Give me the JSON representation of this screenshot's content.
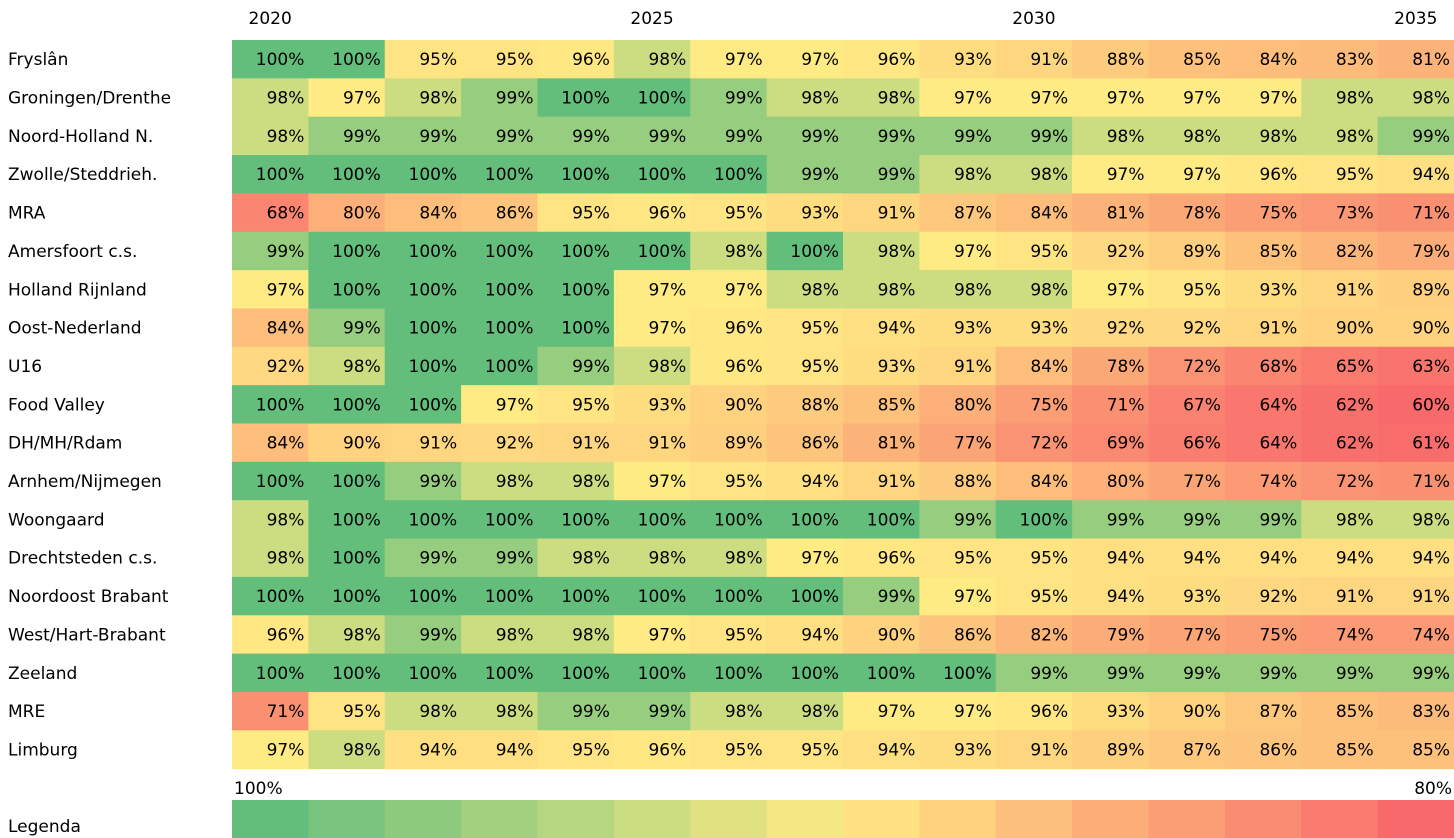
{
  "chart_data": {
    "type": "heatmap",
    "categories": [
      "2020",
      null,
      null,
      null,
      null,
      "2025",
      null,
      null,
      null,
      null,
      "2030",
      null,
      null,
      null,
      null,
      "2035"
    ],
    "colors": {
      "high": "#63be7b",
      "mid": "#ffeb84",
      "low": "#f8696b"
    },
    "legend": {
      "title": "Legenda",
      "labels": [
        "100%",
        "80%"
      ]
    },
    "series": [
      {
        "name": "Fryslân",
        "values": [
          100,
          100,
          95,
          95,
          96,
          98,
          97,
          97,
          96,
          93,
          91,
          88,
          85,
          84,
          83,
          81
        ],
        "value_labels": [
          "100%",
          "100%",
          "95%",
          "95%",
          "96%",
          "98%",
          "97%",
          "97%",
          "96%",
          "93%",
          "91%",
          "88%",
          "85%",
          "84%",
          "83%",
          "81%"
        ]
      },
      {
        "name": "Groningen/Drenthe",
        "values": [
          98,
          97,
          98,
          99,
          100,
          100,
          99,
          98,
          98,
          97,
          97,
          97,
          97,
          97,
          98,
          98
        ],
        "value_labels": [
          "98%",
          "97%",
          "98%",
          "99%",
          "100%",
          "100%",
          "99%",
          "98%",
          "98%",
          "97%",
          "97%",
          "97%",
          "97%",
          "97%",
          "98%",
          "98%"
        ]
      },
      {
        "name": "Noord-Holland N.",
        "values": [
          98,
          99,
          99,
          99,
          99,
          99,
          99,
          99,
          99,
          99,
          99,
          98,
          98,
          98,
          98,
          99
        ],
        "value_labels": [
          "98%",
          "99%",
          "99%",
          "99%",
          "99%",
          "99%",
          "99%",
          "99%",
          "99%",
          "99%",
          "99%",
          "98%",
          "98%",
          "98%",
          "98%",
          "99%"
        ]
      },
      {
        "name": "Zwolle/Steddrieh.",
        "values": [
          100,
          100,
          100,
          100,
          100,
          100,
          100,
          99,
          99,
          98,
          98,
          97,
          97,
          96,
          95,
          94
        ],
        "value_labels": [
          "100%",
          "100%",
          "100%",
          "100%",
          "100%",
          "100%",
          "100%",
          "99%",
          "99%",
          "98%",
          "98%",
          "97%",
          "97%",
          "96%",
          "95%",
          "94%"
        ]
      },
      {
        "name": "MRA",
        "values": [
          68,
          80,
          84,
          86,
          95,
          96,
          95,
          93,
          91,
          87,
          84,
          81,
          78,
          75,
          73,
          71
        ],
        "value_labels": [
          "68%",
          "80%",
          "84%",
          "86%",
          "95%",
          "96%",
          "95%",
          "93%",
          "91%",
          "87%",
          "84%",
          "81%",
          "78%",
          "75%",
          "73%",
          "71%"
        ]
      },
      {
        "name": "Amersfoort c.s.",
        "values": [
          99,
          100,
          100,
          100,
          100,
          100,
          98,
          100,
          98,
          97,
          95,
          92,
          89,
          85,
          82,
          79
        ],
        "value_labels": [
          "99%",
          "100%",
          "100%",
          "100%",
          "100%",
          "100%",
          "98%",
          "100%",
          "98%",
          "97%",
          "95%",
          "92%",
          "89%",
          "85%",
          "82%",
          "79%"
        ]
      },
      {
        "name": "Holland Rijnland",
        "values": [
          97,
          100,
          100,
          100,
          100,
          97,
          97,
          98,
          98,
          98,
          98,
          97,
          95,
          93,
          91,
          89
        ],
        "value_labels": [
          "97%",
          "100%",
          "100%",
          "100%",
          "100%",
          "97%",
          "97%",
          "98%",
          "98%",
          "98%",
          "98%",
          "97%",
          "95%",
          "93%",
          "91%",
          "89%"
        ]
      },
      {
        "name": "Oost-Nederland",
        "values": [
          84,
          99,
          100,
          100,
          100,
          97,
          96,
          95,
          94,
          93,
          93,
          92,
          92,
          91,
          90,
          90
        ],
        "value_labels": [
          "84%",
          "99%",
          "100%",
          "100%",
          "100%",
          "97%",
          "96%",
          "95%",
          "94%",
          "93%",
          "93%",
          "92%",
          "92%",
          "91%",
          "90%",
          "90%"
        ]
      },
      {
        "name": "U16",
        "values": [
          92,
          98,
          100,
          100,
          99,
          98,
          96,
          95,
          93,
          91,
          84,
          78,
          72,
          68,
          65,
          63
        ],
        "value_labels": [
          "92%",
          "98%",
          "100%",
          "100%",
          "99%",
          "98%",
          "96%",
          "95%",
          "93%",
          "91%",
          "84%",
          "78%",
          "72%",
          "68%",
          "65%",
          "63%"
        ]
      },
      {
        "name": "Food Valley",
        "values": [
          100,
          100,
          100,
          97,
          95,
          93,
          90,
          88,
          85,
          80,
          75,
          71,
          67,
          64,
          62,
          60
        ],
        "value_labels": [
          "100%",
          "100%",
          "100%",
          "97%",
          "95%",
          "93%",
          "90%",
          "88%",
          "85%",
          "80%",
          "75%",
          "71%",
          "67%",
          "64%",
          "62%",
          "60%"
        ]
      },
      {
        "name": "DH/MH/Rdam",
        "values": [
          84,
          90,
          91,
          92,
          91,
          91,
          89,
          86,
          81,
          77,
          72,
          69,
          66,
          64,
          62,
          61
        ],
        "value_labels": [
          "84%",
          "90%",
          "91%",
          "92%",
          "91%",
          "91%",
          "89%",
          "86%",
          "81%",
          "77%",
          "72%",
          "69%",
          "66%",
          "64%",
          "62%",
          "61%"
        ]
      },
      {
        "name": "Arnhem/Nijmegen",
        "values": [
          100,
          100,
          99,
          98,
          98,
          97,
          95,
          94,
          91,
          88,
          84,
          80,
          77,
          74,
          72,
          71
        ],
        "value_labels": [
          "100%",
          "100%",
          "99%",
          "98%",
          "98%",
          "97%",
          "95%",
          "94%",
          "91%",
          "88%",
          "84%",
          "80%",
          "77%",
          "74%",
          "72%",
          "71%"
        ]
      },
      {
        "name": "Woongaard",
        "values": [
          98,
          100,
          100,
          100,
          100,
          100,
          100,
          100,
          100,
          99,
          100,
          99,
          99,
          99,
          98,
          98
        ],
        "value_labels": [
          "98%",
          "100%",
          "100%",
          "100%",
          "100%",
          "100%",
          "100%",
          "100%",
          "100%",
          "99%",
          "100%",
          "99%",
          "99%",
          "99%",
          "98%",
          "98%"
        ]
      },
      {
        "name": "Drechtsteden c.s.",
        "values": [
          98,
          100,
          99,
          99,
          98,
          98,
          98,
          97,
          96,
          95,
          95,
          94,
          94,
          94,
          94,
          94
        ],
        "value_labels": [
          "98%",
          "100%",
          "99%",
          "99%",
          "98%",
          "98%",
          "98%",
          "97%",
          "96%",
          "95%",
          "95%",
          "94%",
          "94%",
          "94%",
          "94%",
          "94%"
        ]
      },
      {
        "name": "Noordoost Brabant",
        "values": [
          100,
          100,
          100,
          100,
          100,
          100,
          100,
          100,
          99,
          97,
          95,
          94,
          93,
          92,
          91,
          91
        ],
        "value_labels": [
          "100%",
          "100%",
          "100%",
          "100%",
          "100%",
          "100%",
          "100%",
          "100%",
          "99%",
          "97%",
          "95%",
          "94%",
          "93%",
          "92%",
          "91%",
          "91%"
        ]
      },
      {
        "name": "West/Hart-Brabant",
        "values": [
          96,
          98,
          99,
          98,
          98,
          97,
          95,
          94,
          90,
          86,
          82,
          79,
          77,
          75,
          74,
          74
        ],
        "value_labels": [
          "96%",
          "98%",
          "99%",
          "98%",
          "98%",
          "97%",
          "95%",
          "94%",
          "90%",
          "86%",
          "82%",
          "79%",
          "77%",
          "75%",
          "74%",
          "74%"
        ]
      },
      {
        "name": "Zeeland",
        "values": [
          100,
          100,
          100,
          100,
          100,
          100,
          100,
          100,
          100,
          100,
          99,
          99,
          99,
          99,
          99,
          99
        ],
        "value_labels": [
          "100%",
          "100%",
          "100%",
          "100%",
          "100%",
          "100%",
          "100%",
          "100%",
          "100%",
          "100%",
          "99%",
          "99%",
          "99%",
          "99%",
          "99%",
          "99%"
        ]
      },
      {
        "name": "MRE",
        "values": [
          71,
          95,
          98,
          98,
          99,
          99,
          98,
          98,
          97,
          97,
          96,
          93,
          90,
          87,
          85,
          83
        ],
        "value_labels": [
          "71%",
          "95%",
          "98%",
          "98%",
          "99%",
          "99%",
          "98%",
          "98%",
          "97%",
          "97%",
          "96%",
          "93%",
          "90%",
          "87%",
          "85%",
          "83%"
        ]
      },
      {
        "name": "Limburg",
        "values": [
          97,
          98,
          94,
          94,
          95,
          96,
          95,
          95,
          94,
          93,
          91,
          89,
          87,
          86,
          85,
          85
        ],
        "value_labels": [
          "97%",
          "98%",
          "94%",
          "94%",
          "95%",
          "96%",
          "95%",
          "95%",
          "94%",
          "93%",
          "91%",
          "89%",
          "87%",
          "86%",
          "85%",
          "85%"
        ]
      }
    ]
  }
}
